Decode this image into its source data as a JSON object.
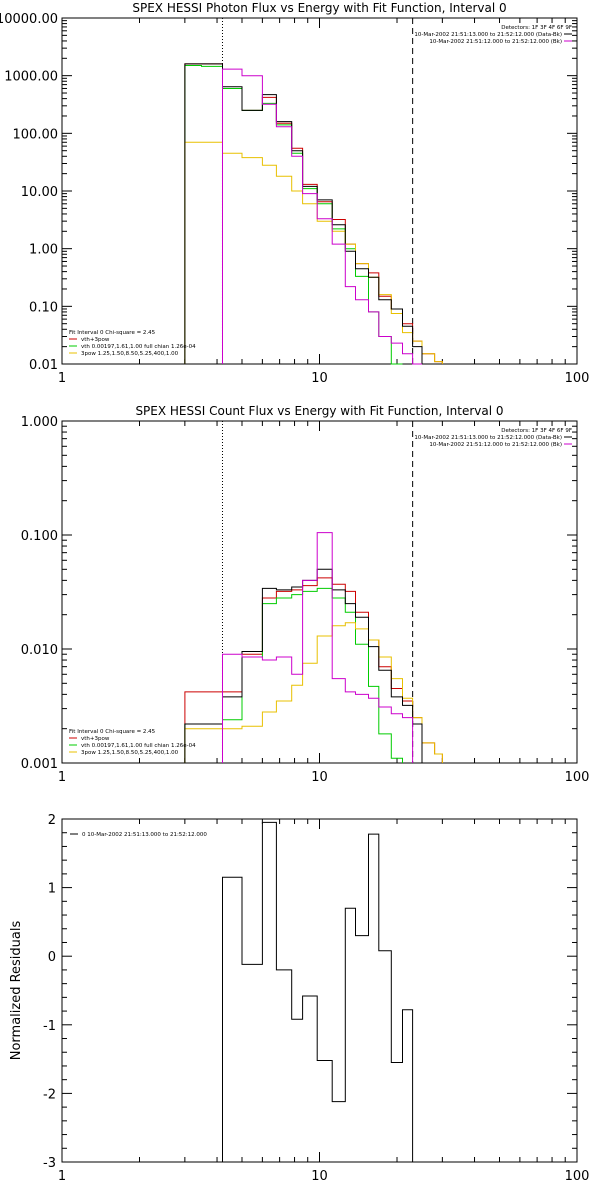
{
  "chart_data": [
    {
      "type": "line",
      "title": "SPEX HESSI Photon Flux vs Energy with Fit Function, Interval 0",
      "xscale": "log",
      "yscale": "log",
      "xlim": [
        1,
        100
      ],
      "ylim": [
        0.01,
        10000
      ],
      "xticks": [
        "1",
        "10",
        "100"
      ],
      "yticks": [
        "10000.00",
        "1000.00",
        "100.00",
        "10.00",
        "1.00",
        "0.10",
        "0.01"
      ],
      "legend_right": [
        "Detectors: 1F 3F 4F 6F 9F",
        "10-Mar-2002 21:51:13.000 to 21:52:12.000 (Data-Bk)",
        "10-Mar-2002 21:51:12.000 to 21:52:12.000 (Bk)"
      ],
      "fit_info": "Fit Interval 0   Chi-square = 2.45",
      "vlines": [
        {
          "x": 4.2,
          "style": "dotted"
        },
        {
          "x": 23.0,
          "style": "dashed"
        }
      ],
      "series": [
        {
          "name": "vth+3pow",
          "color": "#cc0000",
          "bins": [
            [
              3.0,
              3.48,
              1600
            ],
            [
              3.48,
              4.2,
              1600
            ],
            [
              4.2,
              5.0,
              600
            ],
            [
              5.0,
              6.0,
              250
            ],
            [
              6.0,
              6.8,
              420
            ],
            [
              6.8,
              7.8,
              150
            ],
            [
              7.8,
              8.6,
              55
            ],
            [
              8.6,
              9.8,
              13
            ],
            [
              9.8,
              11.2,
              6.5
            ],
            [
              11.2,
              12.6,
              3.2
            ],
            [
              12.6,
              13.8,
              1.2
            ],
            [
              13.8,
              15.5,
              0.55
            ],
            [
              15.5,
              17.0,
              0.38
            ],
            [
              17.0,
              19.0,
              0.15
            ],
            [
              19.0,
              21.0,
              0.09
            ],
            [
              21.0,
              23.0,
              0.05
            ],
            [
              23.0,
              25.0,
              0.025
            ],
            [
              25.0,
              28.0,
              0.015
            ],
            [
              28.0,
              30.0,
              0.011
            ]
          ]
        },
        {
          "name": "vth 0.00197,1.61,1.00  full chian 1.26e-04",
          "color": "#00cc00",
          "bins": [
            [
              3.0,
              3.48,
              1500
            ],
            [
              3.48,
              4.2,
              1450
            ],
            [
              4.2,
              5.0,
              600
            ],
            [
              5.0,
              6.0,
              250
            ],
            [
              6.0,
              6.8,
              330
            ],
            [
              6.8,
              7.8,
              140
            ],
            [
              7.8,
              8.6,
              45
            ],
            [
              8.6,
              9.8,
              11
            ],
            [
              9.8,
              11.2,
              6.0
            ],
            [
              11.2,
              12.6,
              2.2
            ],
            [
              12.6,
              13.8,
              1.0
            ],
            [
              13.8,
              15.5,
              0.33
            ],
            [
              15.5,
              17.0,
              0.08
            ],
            [
              17.0,
              19.0,
              0.03
            ],
            [
              19.0,
              21.0,
              0.008
            ]
          ]
        },
        {
          "name": "3pow 1.25,1.50,8.50,5.25,400,1.00",
          "color": "#e8c000",
          "bins": [
            [
              3.0,
              3.48,
              70
            ],
            [
              3.48,
              4.2,
              70
            ],
            [
              4.2,
              5.0,
              45
            ],
            [
              5.0,
              6.0,
              38
            ],
            [
              6.0,
              6.8,
              28
            ],
            [
              6.8,
              7.8,
              18
            ],
            [
              7.8,
              8.6,
              10
            ],
            [
              8.6,
              9.8,
              6.0
            ],
            [
              9.8,
              11.2,
              3.0
            ],
            [
              11.2,
              12.6,
              2.0
            ],
            [
              12.6,
              13.8,
              1.2
            ],
            [
              13.8,
              15.5,
              0.55
            ],
            [
              15.5,
              17.0,
              0.32
            ],
            [
              17.0,
              19.0,
              0.16
            ],
            [
              19.0,
              21.0,
              0.075
            ],
            [
              21.0,
              23.0,
              0.035
            ],
            [
              23.0,
              25.0,
              0.025
            ],
            [
              25.0,
              28.0,
              0.015
            ],
            [
              28.0,
              30.0,
              0.011
            ]
          ]
        },
        {
          "name": "data",
          "color": "#000000",
          "bins": [
            [
              3.0,
              3.48,
              1600
            ],
            [
              3.48,
              4.2,
              1600
            ],
            [
              4.2,
              5.0,
              640
            ],
            [
              5.0,
              6.0,
              250
            ],
            [
              6.0,
              6.8,
              470
            ],
            [
              6.8,
              7.8,
              160
            ],
            [
              7.8,
              8.6,
              50
            ],
            [
              8.6,
              9.8,
              12
            ],
            [
              9.8,
              11.2,
              7.0
            ],
            [
              11.2,
              12.6,
              2.6
            ],
            [
              12.6,
              13.8,
              0.9
            ],
            [
              13.8,
              15.5,
              0.45
            ],
            [
              15.5,
              17.0,
              0.32
            ],
            [
              17.0,
              19.0,
              0.13
            ],
            [
              19.0,
              21.0,
              0.09
            ],
            [
              21.0,
              23.0,
              0.045
            ],
            [
              23.0,
              25.0,
              0.02
            ]
          ]
        },
        {
          "name": "background",
          "color": "#cc00cc",
          "bins": [
            [
              4.2,
              5.0,
              1300
            ],
            [
              5.0,
              6.0,
              1000
            ],
            [
              6.0,
              6.8,
              320
            ],
            [
              6.8,
              7.8,
              130
            ],
            [
              7.8,
              8.6,
              40
            ],
            [
              8.6,
              9.8,
              9
            ],
            [
              9.8,
              11.2,
              3.3
            ],
            [
              11.2,
              12.6,
              1.2
            ],
            [
              12.6,
              13.8,
              0.22
            ],
            [
              13.8,
              15.5,
              0.13
            ],
            [
              15.5,
              17.0,
              0.08
            ],
            [
              17.0,
              19.0,
              0.03
            ],
            [
              19.0,
              21.0,
              0.023
            ],
            [
              21.0,
              23.0,
              0.015
            ],
            [
              23.0,
              25.0,
              0.01
            ]
          ]
        }
      ]
    },
    {
      "type": "line",
      "title": "SPEX HESSI Count Flux vs Energy with Fit Function, Interval 0",
      "xscale": "log",
      "yscale": "log",
      "xlim": [
        1,
        100
      ],
      "ylim": [
        0.001,
        1.0
      ],
      "xticks": [
        "1",
        "10",
        "100"
      ],
      "yticks": [
        "1.000",
        "0.100",
        "0.010",
        "0.001"
      ],
      "legend_right": [
        "Detectors: 1F 3F 4F 6F 9F",
        "10-Mar-2002 21:51:13.000 to 21:52:12.000 (Data-Bk)",
        "10-Mar-2002 21:51:12.000 to 21:52:12.000 (Bk)"
      ],
      "fit_info": "Fit Interval 0   Chi-square = 2.45",
      "vlines": [
        {
          "x": 4.2,
          "style": "dotted"
        },
        {
          "x": 23.0,
          "style": "dashed"
        }
      ],
      "series": [
        {
          "name": "vth+3pow",
          "color": "#cc0000",
          "bins": [
            [
              3.0,
              4.2,
              0.0042
            ],
            [
              4.2,
              5.0,
              0.0042
            ],
            [
              5.0,
              6.0,
              0.009
            ],
            [
              6.0,
              6.8,
              0.028
            ],
            [
              6.8,
              7.8,
              0.032
            ],
            [
              7.8,
              8.6,
              0.033
            ],
            [
              8.6,
              9.8,
              0.036
            ],
            [
              9.8,
              11.2,
              0.042
            ],
            [
              11.2,
              12.6,
              0.037
            ],
            [
              12.6,
              13.8,
              0.032
            ],
            [
              13.8,
              15.5,
              0.021
            ],
            [
              15.5,
              17.0,
              0.012
            ],
            [
              17.0,
              19.0,
              0.007
            ],
            [
              19.0,
              21.0,
              0.0045
            ],
            [
              21.0,
              23.0,
              0.0035
            ],
            [
              23.0,
              25.0,
              0.0025
            ],
            [
              25.0,
              28.0,
              0.0015
            ],
            [
              28.0,
              30.0,
              0.0012
            ]
          ]
        },
        {
          "name": "vth 0.00197,1.61,1.00  full chian 1.26e-04",
          "color": "#00cc00",
          "bins": [
            [
              3.0,
              4.2,
              0.0022
            ],
            [
              4.2,
              5.0,
              0.0024
            ],
            [
              5.0,
              6.0,
              0.0085
            ],
            [
              6.0,
              6.8,
              0.025
            ],
            [
              6.8,
              7.8,
              0.028
            ],
            [
              7.8,
              8.6,
              0.03
            ],
            [
              8.6,
              9.8,
              0.032
            ],
            [
              9.8,
              11.2,
              0.034
            ],
            [
              11.2,
              12.6,
              0.028
            ],
            [
              12.6,
              13.8,
              0.021
            ],
            [
              13.8,
              15.5,
              0.011
            ],
            [
              15.5,
              17.0,
              0.0047
            ],
            [
              17.0,
              19.0,
              0.0018
            ],
            [
              19.0,
              21.0,
              0.0011
            ]
          ]
        },
        {
          "name": "3pow 1.25,1.50,8.50,5.25,400,1.00",
          "color": "#e8c000",
          "bins": [
            [
              3.0,
              4.2,
              0.002
            ],
            [
              4.2,
              5.0,
              0.002
            ],
            [
              5.0,
              6.0,
              0.0021
            ],
            [
              6.0,
              6.8,
              0.0028
            ],
            [
              6.8,
              7.8,
              0.0035
            ],
            [
              7.8,
              8.6,
              0.0048
            ],
            [
              8.6,
              9.8,
              0.0075
            ],
            [
              9.8,
              11.2,
              0.013
            ],
            [
              11.2,
              12.6,
              0.016
            ],
            [
              12.6,
              13.8,
              0.017
            ],
            [
              13.8,
              15.5,
              0.015
            ],
            [
              15.5,
              17.0,
              0.012
            ],
            [
              17.0,
              19.0,
              0.0085
            ],
            [
              19.0,
              21.0,
              0.0055
            ],
            [
              21.0,
              23.0,
              0.0037
            ],
            [
              23.0,
              25.0,
              0.0025
            ],
            [
              25.0,
              28.0,
              0.0015
            ],
            [
              28.0,
              30.0,
              0.0012
            ]
          ]
        },
        {
          "name": "data",
          "color": "#000000",
          "bins": [
            [
              3.0,
              4.2,
              0.0022
            ],
            [
              4.2,
              5.0,
              0.0038
            ],
            [
              5.0,
              6.0,
              0.0095
            ],
            [
              6.0,
              6.8,
              0.034
            ],
            [
              6.8,
              7.8,
              0.033
            ],
            [
              7.8,
              8.6,
              0.035
            ],
            [
              8.6,
              9.8,
              0.04
            ],
            [
              9.8,
              11.2,
              0.05
            ],
            [
              11.2,
              12.6,
              0.033
            ],
            [
              12.6,
              13.8,
              0.025
            ],
            [
              13.8,
              15.5,
              0.019
            ],
            [
              15.5,
              17.0,
              0.0105
            ],
            [
              17.0,
              19.0,
              0.0065
            ],
            [
              19.0,
              21.0,
              0.0038
            ],
            [
              21.0,
              23.0,
              0.0032
            ],
            [
              23.0,
              25.0,
              0.0022
            ]
          ]
        },
        {
          "name": "background",
          "color": "#cc00cc",
          "bins": [
            [
              4.2,
              5.0,
              0.009
            ],
            [
              5.0,
              6.0,
              0.0085
            ],
            [
              6.0,
              6.8,
              0.008
            ],
            [
              6.8,
              7.8,
              0.0085
            ],
            [
              7.8,
              8.6,
              0.006
            ],
            [
              8.6,
              9.8,
              0.04
            ],
            [
              9.8,
              11.2,
              0.105
            ],
            [
              11.2,
              12.6,
              0.0055
            ],
            [
              12.6,
              13.8,
              0.0042
            ],
            [
              13.8,
              15.5,
              0.004
            ],
            [
              15.5,
              17.0,
              0.0037
            ],
            [
              17.0,
              19.0,
              0.0031
            ],
            [
              19.0,
              21.0,
              0.0027
            ],
            [
              21.0,
              23.0,
              0.0025
            ]
          ]
        }
      ]
    },
    {
      "type": "line",
      "title": "",
      "xscale": "log",
      "yscale": "linear",
      "xlim": [
        1,
        100
      ],
      "ylim": [
        -3,
        2
      ],
      "xticks": [
        "1",
        "10",
        "100"
      ],
      "yticks": [
        "2",
        "1",
        "0",
        "-1",
        "-2",
        "-3"
      ],
      "ylabel": "Normalized Residuals",
      "legend_left": "0  10-Mar-2002 21:51:13.000 to 21:52:12.000",
      "series": [
        {
          "name": "residuals",
          "color": "#000000",
          "bins": [
            [
              4.2,
              5.0,
              1.15
            ],
            [
              5.0,
              6.0,
              -0.12
            ],
            [
              6.0,
              6.8,
              1.95
            ],
            [
              6.8,
              7.8,
              -0.2
            ],
            [
              7.8,
              8.6,
              -0.92
            ],
            [
              8.6,
              9.8,
              -0.58
            ],
            [
              9.8,
              11.2,
              -1.52
            ],
            [
              11.2,
              12.6,
              -2.12
            ],
            [
              12.6,
              13.8,
              0.7
            ],
            [
              13.8,
              15.5,
              0.3
            ],
            [
              15.5,
              17.0,
              1.78
            ],
            [
              17.0,
              19.0,
              0.08
            ],
            [
              19.0,
              21.0,
              -1.55
            ],
            [
              21.0,
              23.0,
              -0.78
            ]
          ]
        }
      ]
    }
  ]
}
